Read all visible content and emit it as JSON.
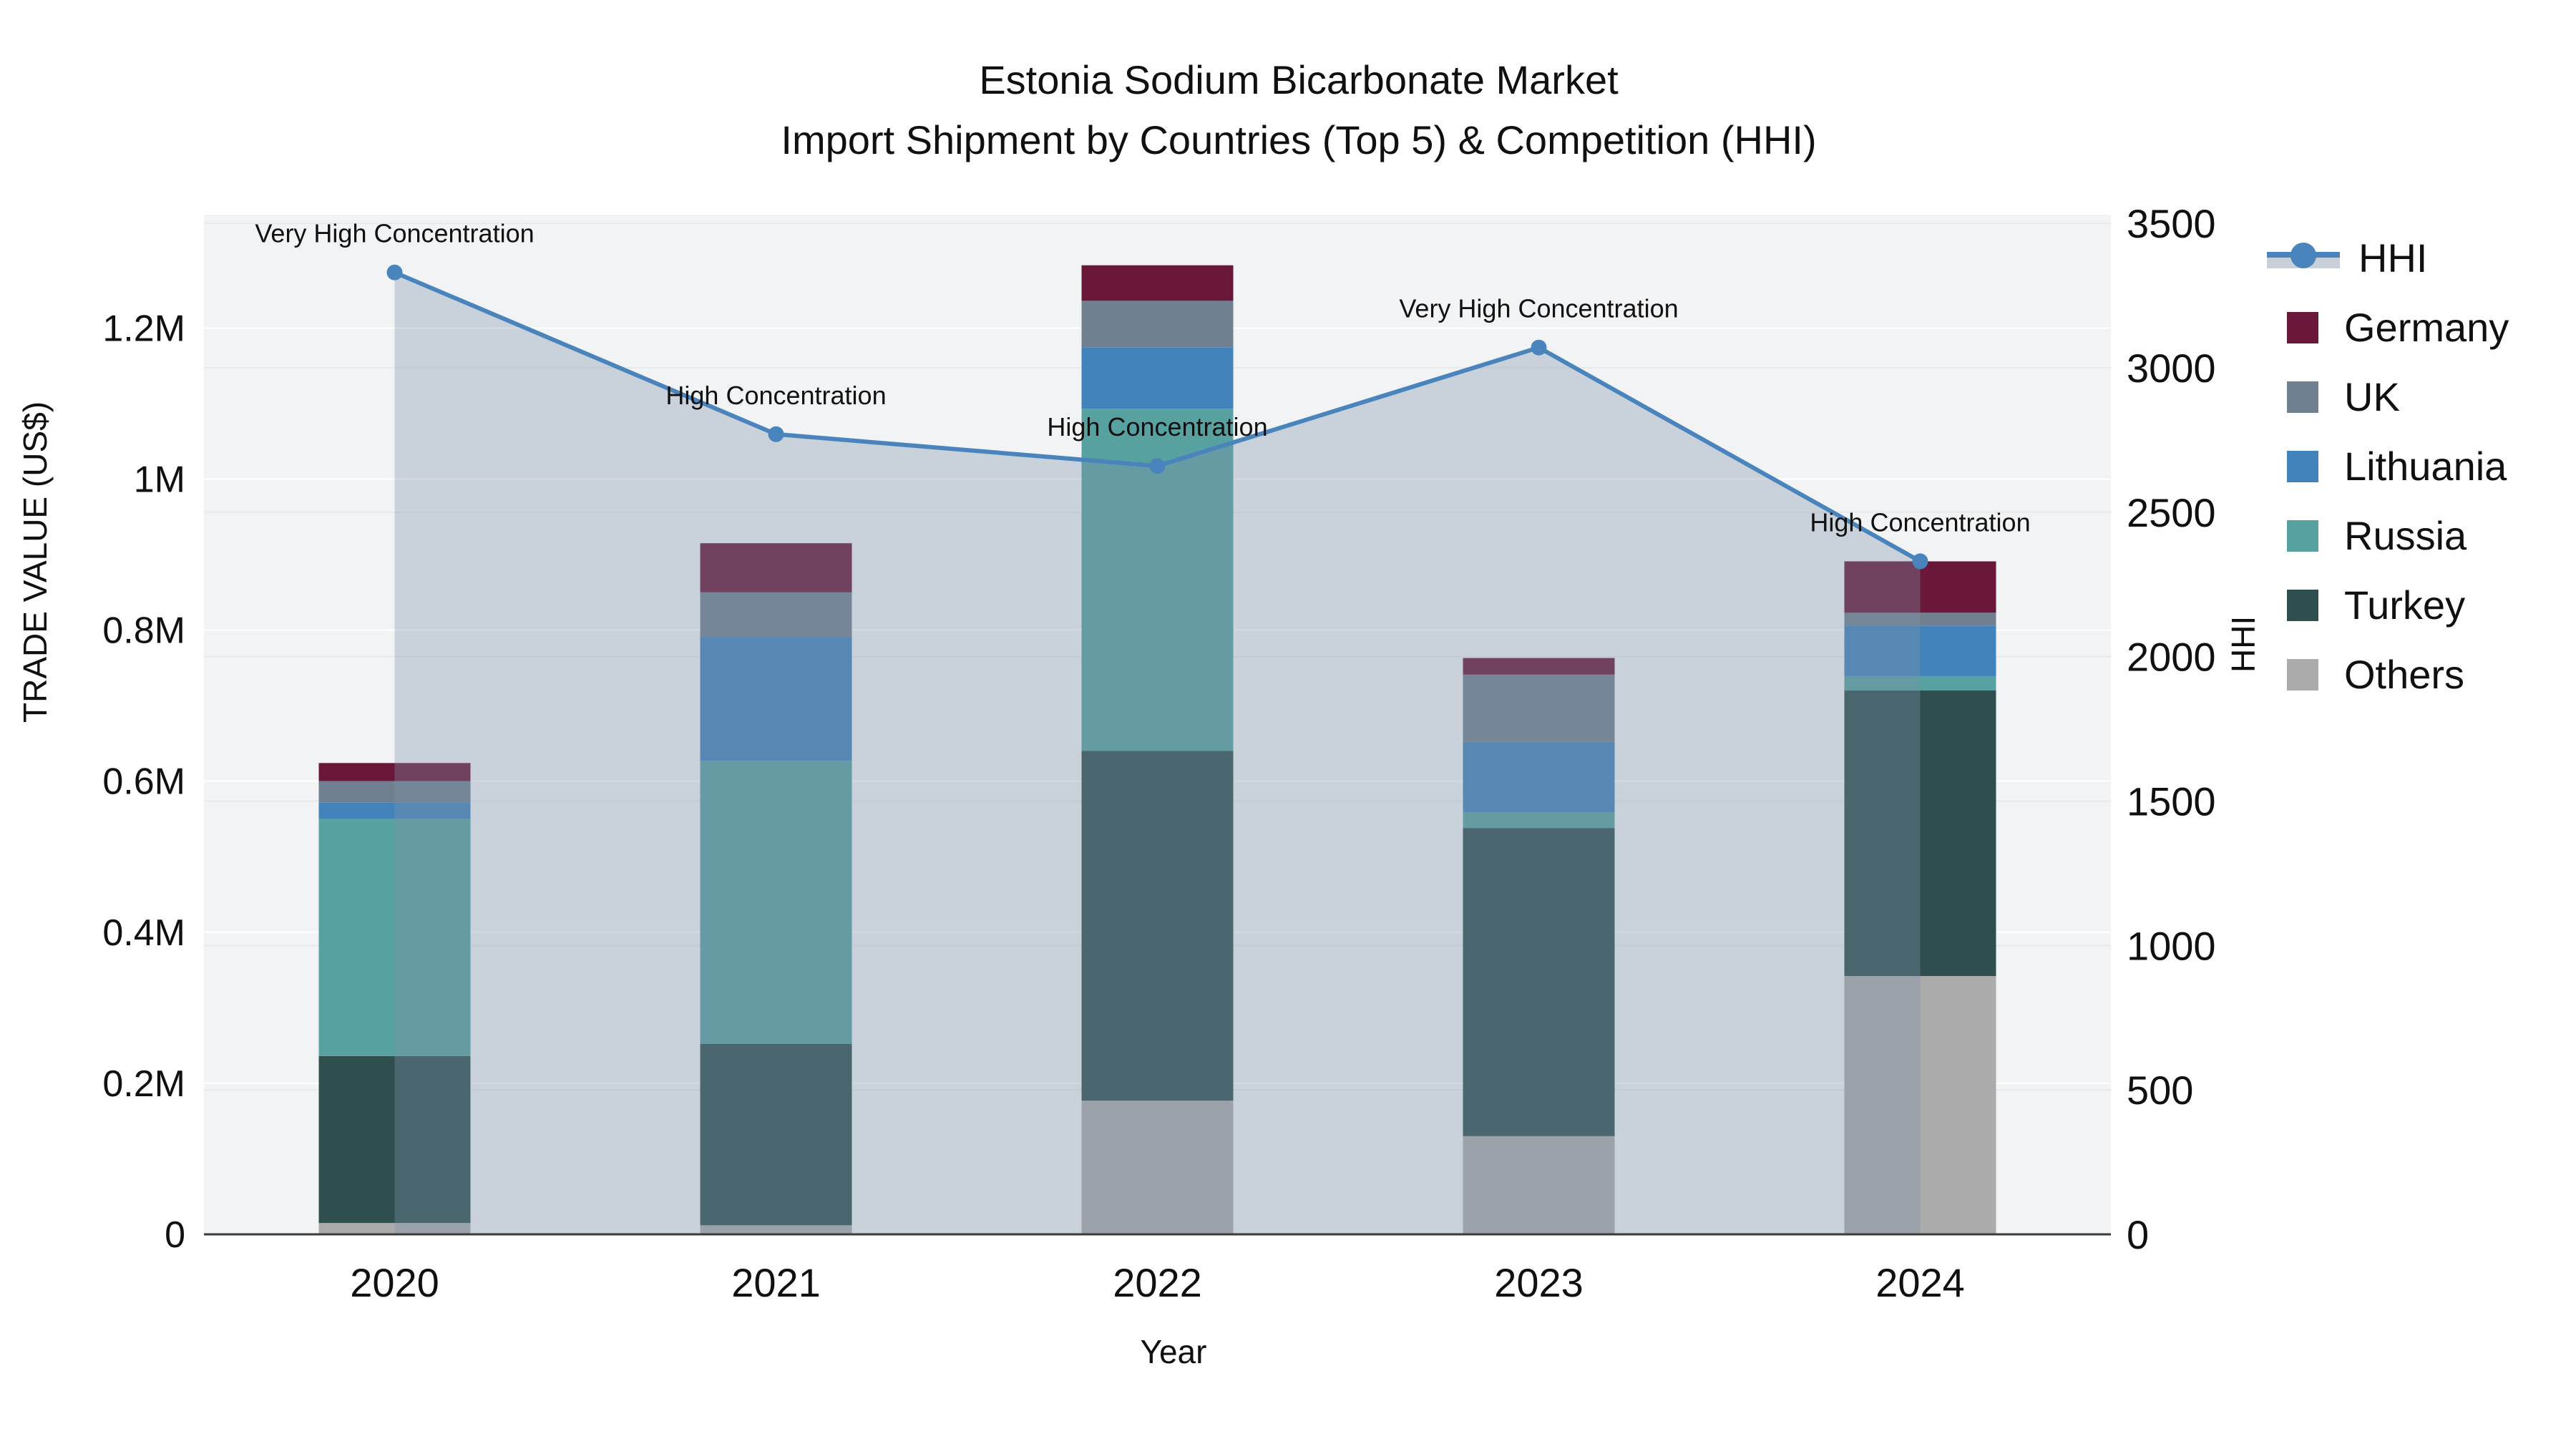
{
  "title": {
    "line1": "Estonia Sodium Bicarbonate Market",
    "line2": "Import Shipment by Countries (Top 5) & Competition (HHI)"
  },
  "axes": {
    "x_label": "Year",
    "left_label": "TRADE VALUE (US$)",
    "right_label": "HHI"
  },
  "chart_data": {
    "type": "bar+line",
    "title": "Estonia Sodium Bicarbonate Market — Import Shipment by Countries (Top 5) & Competition (HHI)",
    "categories": [
      "2020",
      "2021",
      "2022",
      "2023",
      "2024"
    ],
    "xlabel": "Year",
    "ylabel_left": "TRADE VALUE (US$)",
    "ylabel_right": "HHI",
    "left_axis": {
      "max_value": 1350000,
      "ticks": [
        {
          "value": 0,
          "label": "0"
        },
        {
          "value": 200000,
          "label": "0.2M"
        },
        {
          "value": 400000,
          "label": "0.4M"
        },
        {
          "value": 600000,
          "label": "0.6M"
        },
        {
          "value": 800000,
          "label": "0.8M"
        },
        {
          "value": 1000000,
          "label": "1M"
        },
        {
          "value": 1200000,
          "label": "1.2M"
        }
      ]
    },
    "right_axis": {
      "max_value": 3530,
      "ticks": [
        {
          "value": 0,
          "label": "0"
        },
        {
          "value": 500,
          "label": "500"
        },
        {
          "value": 1000,
          "label": "1000"
        },
        {
          "value": 1500,
          "label": "1500"
        },
        {
          "value": 2000,
          "label": "2000"
        },
        {
          "value": 2500,
          "label": "2500"
        },
        {
          "value": 3000,
          "label": "3000"
        },
        {
          "value": 3500,
          "label": "3500"
        }
      ]
    },
    "series": [
      {
        "name": "Germany",
        "color": "#6A1839",
        "values": [
          24000,
          65000,
          47000,
          22000,
          68000
        ]
      },
      {
        "name": "UK",
        "color": "#708090",
        "values": [
          28000,
          59000,
          62000,
          89000,
          17000
        ]
      },
      {
        "name": "Lithuania",
        "color": "#4383BB",
        "values": [
          22000,
          164000,
          81000,
          93000,
          67000
        ]
      },
      {
        "name": "Russia",
        "color": "#58A1A1",
        "values": [
          314000,
          375000,
          453000,
          21000,
          19000
        ]
      },
      {
        "name": "Turkey",
        "color": "#2F4F4F",
        "values": [
          221000,
          240000,
          463000,
          408000,
          378000
        ]
      },
      {
        "name": "Others",
        "color": "#ABABAB",
        "values": [
          15000,
          12000,
          177000,
          130000,
          342000
        ]
      }
    ],
    "stack_order": [
      "Others",
      "Turkey",
      "Russia",
      "Lithuania",
      "UK",
      "Germany"
    ],
    "line": {
      "name": "HHI",
      "color": "#4A84BC",
      "area_fill": "rgba(125,145,170,0.35)",
      "values": [
        3330,
        2770,
        2660,
        3070,
        2330
      ]
    },
    "annotations": [
      {
        "index": 0,
        "text": "Very High Concentration"
      },
      {
        "index": 1,
        "text": "High Concentration"
      },
      {
        "index": 2,
        "text": "High Concentration"
      },
      {
        "index": 3,
        "text": "Very High Concentration"
      },
      {
        "index": 4,
        "text": "Very High Concentration",
        "skip": true
      },
      {
        "index": 4,
        "text": "High Concentration"
      }
    ],
    "legend_order": [
      "HHI",
      "Germany",
      "UK",
      "Lithuania",
      "Russia",
      "Turkey",
      "Others"
    ],
    "grid": true,
    "legend_position": "right"
  },
  "style": {
    "plot_bg": "#F2F3F4",
    "left_grid_color": "#FFFFFF",
    "right_grid_color": "#E7E9EC",
    "axis_line_color": "#3B3B3B",
    "annotation_color": "#111111",
    "tick_color": "#101010"
  }
}
